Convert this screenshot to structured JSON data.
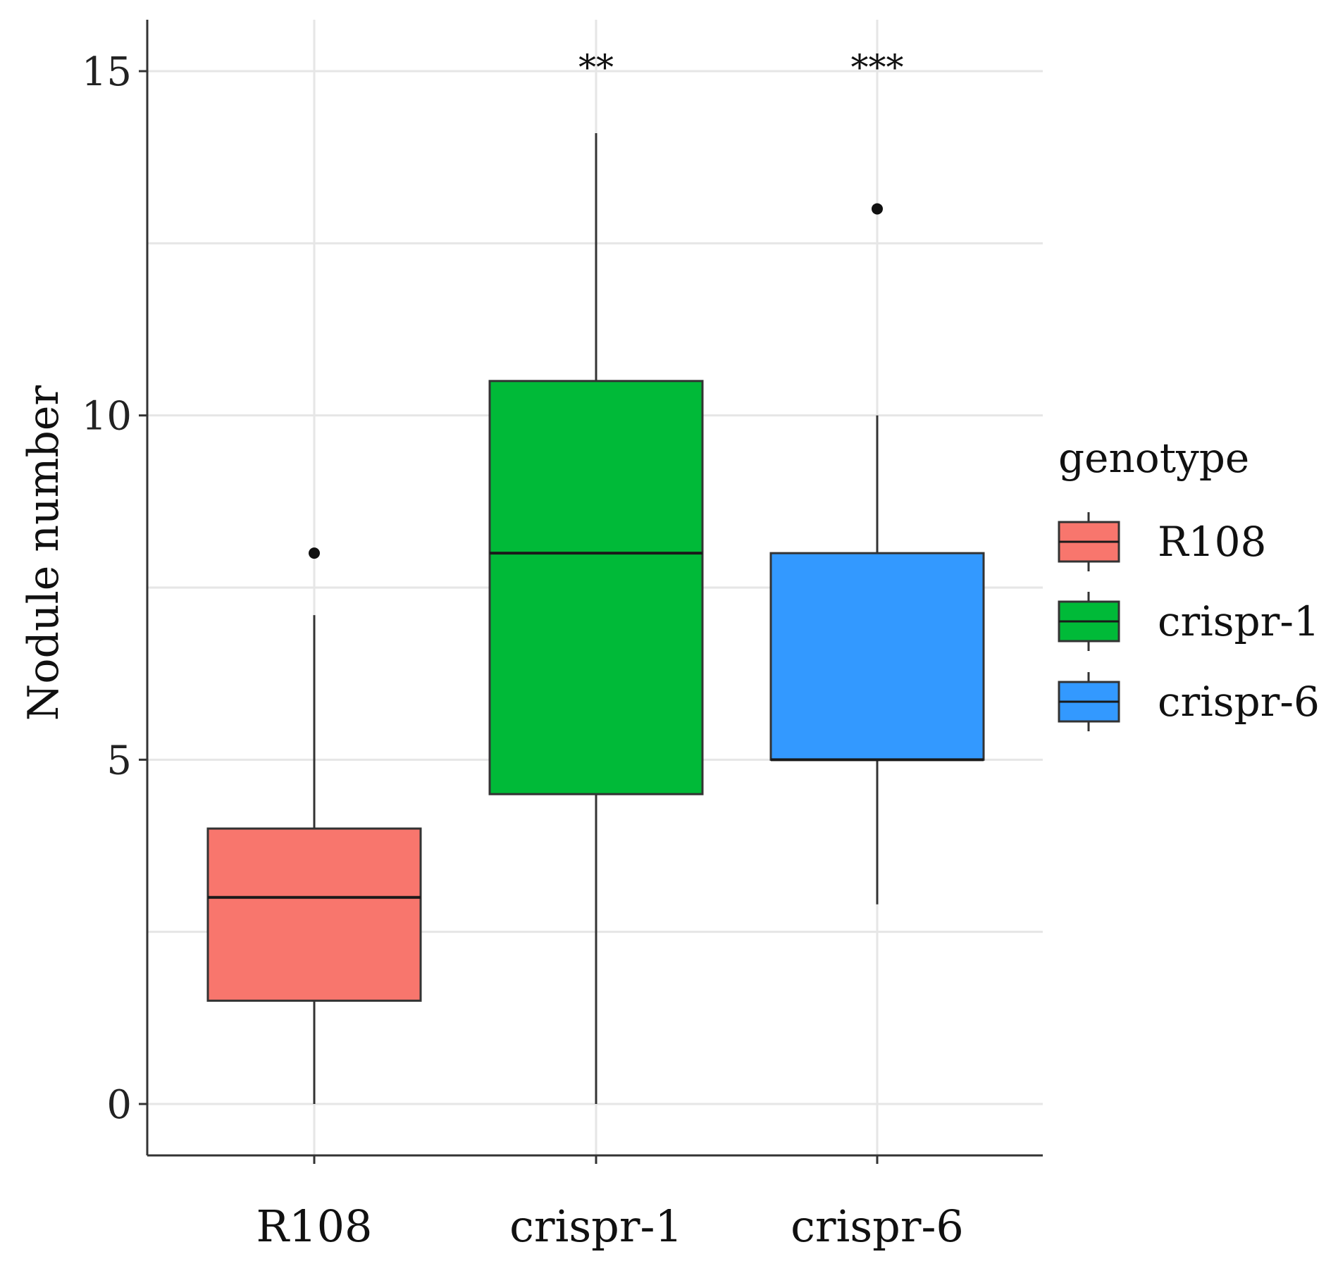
{
  "chart_data": {
    "type": "box",
    "ylabel": "Nodule number",
    "xlabel": "",
    "ylim": [
      -1.7,
      16.5
    ],
    "yticks": [
      0,
      5,
      10,
      15
    ],
    "grid": true,
    "legend": {
      "title": "genotype",
      "placement": "right",
      "entries": [
        "R108",
        "crispr-1",
        "crispr-6"
      ]
    },
    "categories": [
      "R108",
      "crispr-1",
      "crispr-6"
    ],
    "boxes": [
      {
        "name": "R108",
        "color": "#F8766D",
        "whisker_low": 0,
        "q1": 1.5,
        "median": 3,
        "q3": 4,
        "whisker_high": 7.1,
        "outliers": [
          8
        ],
        "significance": ""
      },
      {
        "name": "crispr-1",
        "color": "#00BA38",
        "whisker_low": 0,
        "q1": 4.5,
        "median": 8,
        "q3": 10.5,
        "whisker_high": 14.1,
        "outliers": [],
        "significance": "**"
      },
      {
        "name": "crispr-6",
        "color": "#3399FF",
        "whisker_low": 2.9,
        "q1": 5,
        "median": 5,
        "q3": 8,
        "whisker_high": 10,
        "outliers": [
          13
        ],
        "significance": "***"
      }
    ]
  }
}
